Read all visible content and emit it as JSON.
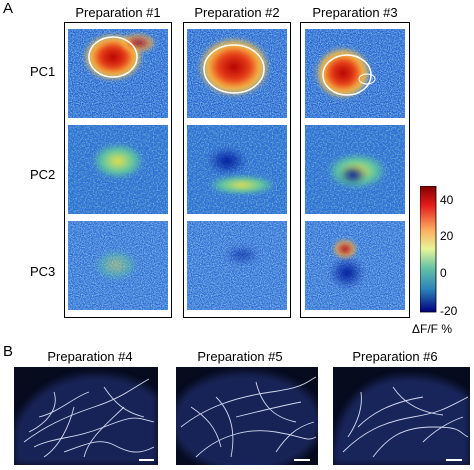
{
  "panel_a": {
    "letter": "A",
    "preparations": [
      "Preparation #1",
      "Preparation #2",
      "Preparation #3"
    ],
    "rows": [
      "PC1",
      "PC2",
      "PC3"
    ],
    "colorbar": {
      "ticks": [
        "40",
        "20",
        "0",
        "-20"
      ],
      "label": "ΔF/F %",
      "colors": [
        "#7f0000",
        "#d7191c",
        "#fdae61",
        "#e6f598",
        "#66c2a5",
        "#2b83ba",
        "#00007f"
      ]
    }
  },
  "panel_b": {
    "letter": "B",
    "preparations": [
      "Preparation #4",
      "Preparation #5",
      "Preparation #6"
    ]
  }
}
